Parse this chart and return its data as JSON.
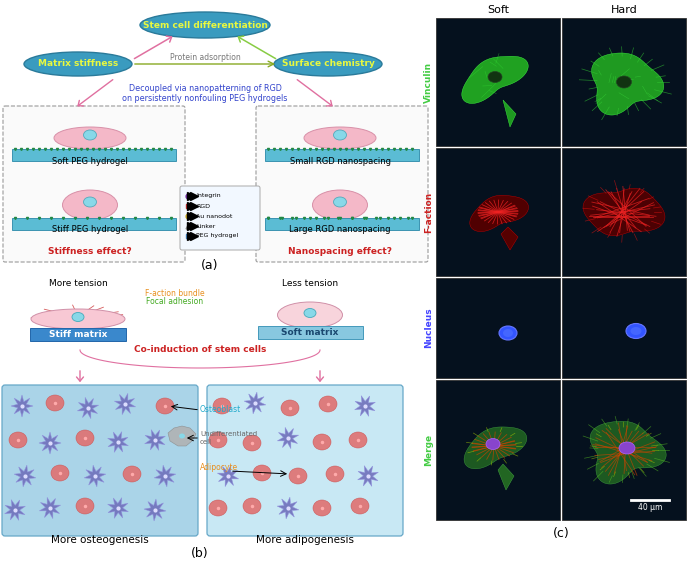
{
  "bg_color": "#ffffff",
  "ellipse_fill": "#3a9bbf",
  "ellipse_text_color": "#e8f840",
  "panel_a_label": "(a)",
  "panel_b_label": "(b)",
  "panel_c_label": "(c)",
  "stem_cell_text": "Stem cell differentiation",
  "matrix_stiffness_text": "Matrix stiffness",
  "surface_chemistry_text": "Surface chemistry",
  "protein_adsorption_text": "Protein adsorption",
  "decoupled_text": "Decoupled via nanopatterning of RGD\non persistently nonfouling PEG hydrogels",
  "soft_peg_text": "Soft PEG hydrogel",
  "stiff_peg_text": "Stiff PEG hydrogel",
  "stiffness_effect_text": "Stiffness effect?",
  "small_rgd_text": "Small RGD nanospacing",
  "large_rgd_text": "Large RGD nanospacing",
  "nanospacing_effect_text": "Nanospacing effect?",
  "integrin_text": "Integrin",
  "rgd_text": "RGD",
  "au_nanodot_text": "Au nanodot",
  "linker_text": "Linker",
  "peg_hydrogel_text": "PEG hydrogel",
  "more_tension_text": "More tension",
  "less_tension_text": "Less tension",
  "f_action_bundle_text": "F-action bundle",
  "focal_adhesion_text": "Focal adhesion",
  "stiff_matrix_text": "Stiff matrix",
  "soft_matrix_text": "Soft matrix",
  "co_induction_text": "Co-induction of stem cells",
  "osteoblast_text": "Osteoblast",
  "undiff_text": "Undifferentiated\ncell",
  "adipocyte_text": "Adipocyte",
  "more_osteogenesis_text": "More osteogenesis",
  "more_adipogenesis_text": "More adipogenesis",
  "soft_col_text": "Soft",
  "hard_col_text": "Hard",
  "vinculin_text": "Vinculin",
  "f_action_row_text": "F-action",
  "nucleus_text": "Nucleus",
  "merge_text": "Merge",
  "scale_bar_text": "40 μm",
  "cell_bg_color": "#05111e",
  "hydrogel_blue": "#5bbcd4",
  "cell_pink": "#f4b8c8",
  "cell_cyan": "#88d8e8",
  "osteoblast_purple": "#7070bb",
  "adipocyte_red": "#e07070",
  "undiff_gray": "#b0b0b0",
  "left_box_blue": "#aad4e8",
  "arrow_pink": "#e070a0",
  "arrow_green": "#88cc44",
  "red_text": "#cc2222",
  "orange_text": "#e89020",
  "green_text": "#44aa22",
  "cyan_text": "#22aacc",
  "blue_text": "#3344cc"
}
